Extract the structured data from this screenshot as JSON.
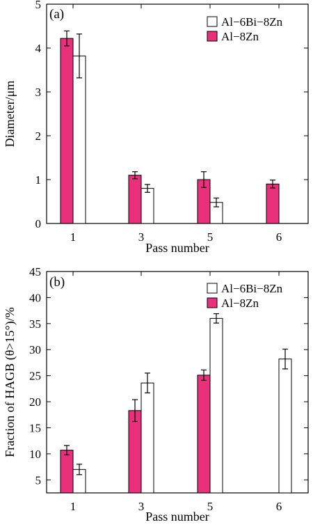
{
  "colors": {
    "al8zn_fill": "#e8317a",
    "al6bi8zn_fill": "#ffffff",
    "stroke": "#000000"
  },
  "chart_data": [
    {
      "panel": "(a)",
      "type": "bar",
      "error_bars": true,
      "categories": [
        "1",
        "3",
        "5",
        "6"
      ],
      "xlabel": "Pass number",
      "ylabel": "Diameter/μm",
      "ylim": [
        0,
        5
      ],
      "yticks": [
        0,
        1,
        2,
        3,
        4,
        5
      ],
      "legend_position": "top-right",
      "legend": [
        "Al−6Bi−8Zn",
        "Al−8Zn"
      ],
      "series": [
        {
          "name": "Al−8Zn",
          "color": "#e8317a",
          "values": [
            4.22,
            1.1,
            1.0,
            0.9
          ],
          "errors": [
            0.17,
            0.08,
            0.18,
            0.09
          ]
        },
        {
          "name": "Al−6Bi−8Zn",
          "color": "#ffffff",
          "values": [
            3.82,
            0.8,
            0.48,
            null
          ],
          "errors": [
            0.5,
            0.09,
            0.1,
            null
          ]
        }
      ]
    },
    {
      "panel": "(b)",
      "type": "bar",
      "error_bars": true,
      "categories": [
        "1",
        "3",
        "5",
        "6"
      ],
      "xlabel": "Pass number",
      "ylabel": "Fraction of HAGB (θ>15°)/%",
      "ylim": [
        2.5,
        45
      ],
      "yticks": [
        5,
        10,
        15,
        20,
        25,
        30,
        35,
        40,
        45
      ],
      "legend_position": "top-right",
      "legend": [
        "Al−6Bi−8Zn",
        "Al−8Zn"
      ],
      "series": [
        {
          "name": "Al−8Zn",
          "color": "#e8317a",
          "values": [
            10.7,
            18.3,
            25.1,
            null
          ],
          "errors": [
            0.9,
            2.1,
            1.0,
            null
          ]
        },
        {
          "name": "Al−6Bi−8Zn",
          "color": "#ffffff",
          "values": [
            7.0,
            23.6,
            36.0,
            28.2
          ],
          "errors": [
            1.0,
            1.9,
            0.9,
            1.9
          ]
        }
      ]
    }
  ]
}
